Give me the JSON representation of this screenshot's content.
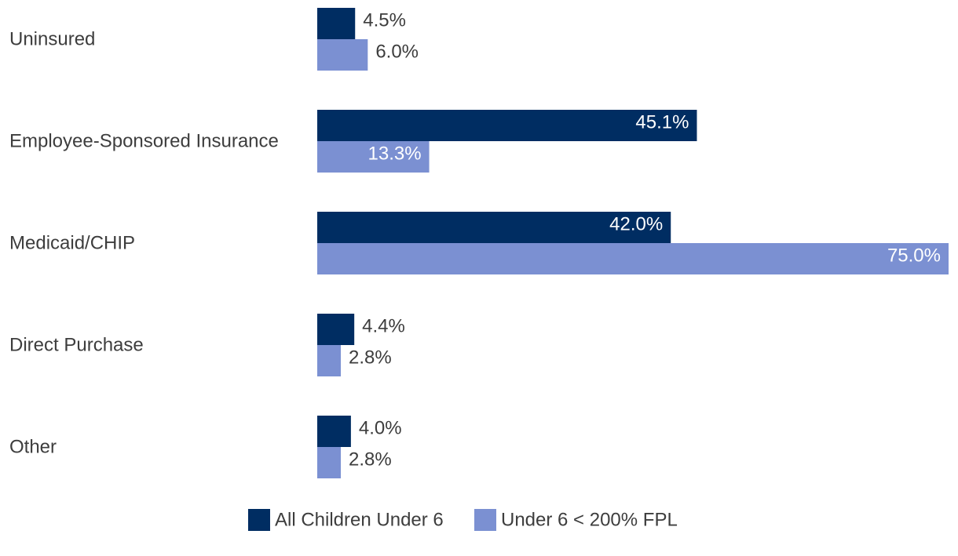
{
  "chart_data": {
    "type": "bar",
    "orientation": "horizontal",
    "categories": [
      "Uninsured",
      "Employee-Sponsored Insurance",
      "Medicaid/CHIP",
      "Direct Purchase",
      "Other"
    ],
    "series": [
      {
        "name": "All Children Under 6",
        "values": [
          4.5,
          45.1,
          42.0,
          4.4,
          4.0
        ],
        "labels": [
          "4.5%",
          "45.1%",
          "42.0%",
          "4.4%",
          "4.0%"
        ],
        "color": "#002d62"
      },
      {
        "name": "Under 6 < 200% FPL",
        "values": [
          6.0,
          13.3,
          75.0,
          2.8,
          2.8
        ],
        "labels": [
          "6.0%",
          "13.3%",
          "75.0%",
          "2.8%",
          "2.8%"
        ],
        "color": "#7b90d2"
      }
    ],
    "title": "",
    "xlabel": "",
    "ylabel": "",
    "xlim": [
      0,
      75
    ],
    "grid": false,
    "legend_position": "bottom"
  },
  "colors": {
    "category_text": "#3d3d3d",
    "label_outside": "#3d3d3d",
    "label_inside": "#ffffff"
  }
}
